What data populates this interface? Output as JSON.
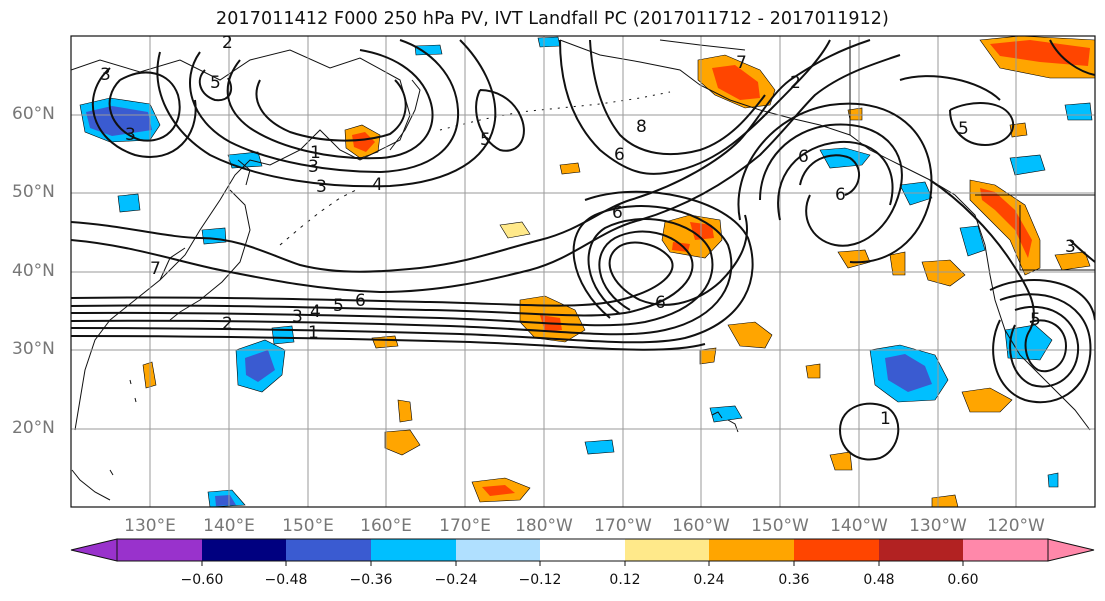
{
  "title": "2017011412 F000 250 hPa PV, IVT Landfall PC (2017011712 - 2017011912)",
  "lat_labels": [
    "60°N",
    "50°N",
    "40°N",
    "30°N",
    "20°N"
  ],
  "lon_labels": [
    "130°E",
    "140°E",
    "150°E",
    "160°E",
    "170°E",
    "180°W",
    "170°W",
    "160°W",
    "150°W",
    "140°W",
    "130°W",
    "120°W"
  ],
  "colorbar": {
    "tick_labels": [
      "−0.60",
      "−0.48",
      "−0.36",
      "−0.24",
      "−0.12",
      "0.12",
      "0.24",
      "0.36",
      "0.48",
      "0.60"
    ],
    "colors": [
      "#9932cc",
      "#000080",
      "#3a5bd1",
      "#00bfff",
      "#b0e0ff",
      "#ffffff",
      "#ffe98a",
      "#ffa500",
      "#ff4500",
      "#b22222",
      "#ff88aa"
    ]
  },
  "contour_labels": [
    "1",
    "2",
    "3",
    "4",
    "5",
    "6",
    "7",
    "8"
  ],
  "map_data": {
    "projection": "PlateCarree",
    "extent": {
      "lon": [
        120,
        250
      ],
      "lat": [
        10,
        70
      ]
    },
    "gridline_lons": [
      130,
      140,
      150,
      160,
      170,
      180,
      190,
      200,
      210,
      220,
      230,
      240
    ],
    "gridline_lats": [
      20,
      30,
      40,
      50,
      60
    ]
  }
}
